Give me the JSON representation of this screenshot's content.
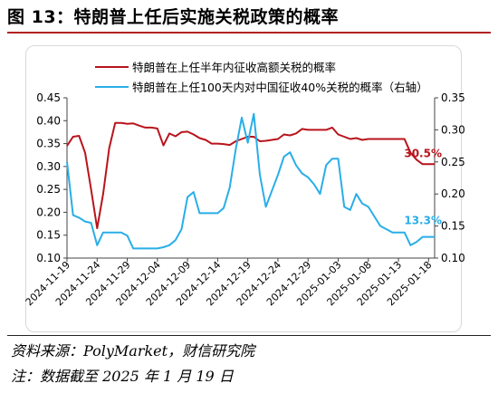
{
  "title": "图 13：特朗普上任后实施关税政策的概率",
  "source": "资料来源：PolyMarket，财信研究院",
  "note": "注：数据截至 2025 年 1 月 19 日",
  "colors": {
    "series1": "#b8141c",
    "series2": "#29aee8",
    "title_rule": "#b22222"
  },
  "chart_data": {
    "type": "line",
    "legend_position": "top",
    "grid": false,
    "x_ticks": [
      "2024-11-19",
      "2024-11-24",
      "2024-11-29",
      "2024-12-04",
      "2024-12-09",
      "2024-12-14",
      "2024-12-19",
      "2024-12-24",
      "2024-12-29",
      "2025-01-03",
      "2025-01-08",
      "2025-01-13",
      "2025-01-18"
    ],
    "y_left": {
      "min": 0.1,
      "max": 0.45,
      "ticks": [
        "0.10",
        "0.15",
        "0.20",
        "0.25",
        "0.30",
        "0.35",
        "0.40",
        "0.45"
      ]
    },
    "y_right": {
      "min": 0.1,
      "max": 0.35,
      "ticks": [
        "0.10",
        "0.15",
        "0.20",
        "0.25",
        "0.30",
        "0.35"
      ]
    },
    "series": [
      {
        "name": "特朗普在上任半年内征收高额关税的概率",
        "axis": "left",
        "end_label": "30.5%",
        "x": [
          0,
          1,
          2,
          3,
          4,
          5,
          6,
          7,
          8,
          9,
          10,
          11,
          12,
          13,
          14,
          15,
          16,
          17,
          18,
          19,
          20,
          21,
          22,
          23,
          24,
          25,
          26,
          27,
          28,
          29,
          30,
          31,
          32,
          33,
          34,
          35,
          36,
          37,
          38,
          39,
          40,
          41,
          42,
          43,
          44,
          45,
          46,
          47,
          48,
          49,
          50,
          51,
          52,
          53,
          54,
          55,
          56,
          57,
          58,
          59,
          60,
          61
        ],
        "values": [
          0.345,
          0.365,
          0.367,
          0.33,
          0.25,
          0.165,
          0.24,
          0.34,
          0.395,
          0.395,
          0.393,
          0.394,
          0.389,
          0.385,
          0.385,
          0.383,
          0.346,
          0.372,
          0.366,
          0.375,
          0.376,
          0.37,
          0.362,
          0.358,
          0.35,
          0.35,
          0.349,
          0.347,
          0.355,
          0.36,
          0.365,
          0.365,
          0.355,
          0.356,
          0.358,
          0.36,
          0.37,
          0.368,
          0.372,
          0.382,
          0.38,
          0.38,
          0.38,
          0.38,
          0.385,
          0.37,
          0.365,
          0.36,
          0.362,
          0.358,
          0.36,
          0.36,
          0.36,
          0.36,
          0.36,
          0.36,
          0.36,
          0.33,
          0.315,
          0.305,
          0.305,
          0.305
        ]
      },
      {
        "name": "特朗普在上任100天内对中国征收40%关税的概率（右轴）",
        "axis": "right",
        "end_label": "13.3%",
        "x": [
          0,
          1,
          2,
          3,
          4,
          5,
          6,
          7,
          8,
          9,
          10,
          11,
          12,
          13,
          14,
          15,
          16,
          17,
          18,
          19,
          20,
          21,
          22,
          23,
          24,
          25,
          26,
          27,
          28,
          29,
          30,
          31,
          32,
          33,
          34,
          35,
          36,
          37,
          38,
          39,
          40,
          41,
          42,
          43,
          44,
          45,
          46,
          47,
          48,
          49,
          50,
          51,
          52,
          53,
          54,
          55,
          56,
          57,
          58,
          59,
          60,
          61
        ],
        "values": [
          0.25,
          0.167,
          0.163,
          0.157,
          0.155,
          0.12,
          0.14,
          0.14,
          0.14,
          0.14,
          0.135,
          0.115,
          0.115,
          0.115,
          0.115,
          0.115,
          0.117,
          0.12,
          0.128,
          0.145,
          0.195,
          0.203,
          0.17,
          0.17,
          0.17,
          0.17,
          0.178,
          0.21,
          0.27,
          0.319,
          0.28,
          0.325,
          0.23,
          0.18,
          0.205,
          0.23,
          0.258,
          0.265,
          0.245,
          0.232,
          0.226,
          0.215,
          0.2,
          0.245,
          0.255,
          0.255,
          0.18,
          0.175,
          0.2,
          0.185,
          0.18,
          0.165,
          0.15,
          0.145,
          0.14,
          0.14,
          0.14,
          0.12,
          0.125,
          0.133,
          0.133,
          0.133
        ]
      }
    ]
  }
}
